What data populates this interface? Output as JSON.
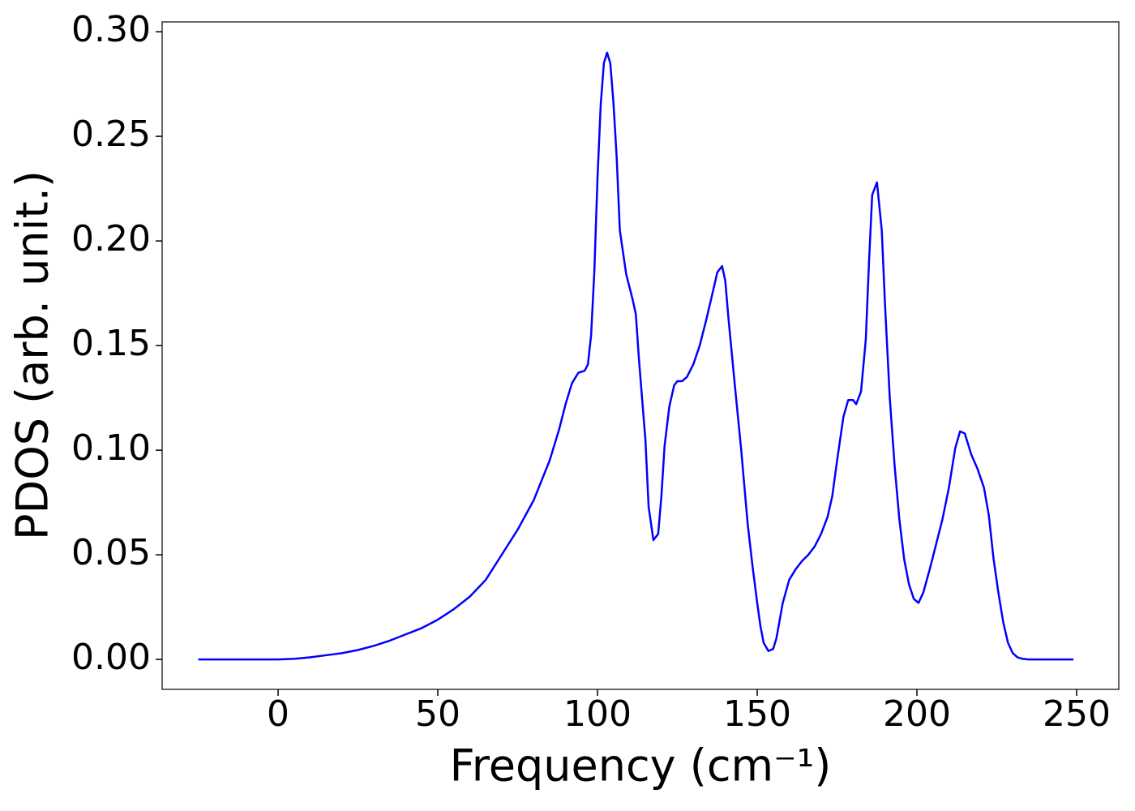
{
  "chart_data": {
    "type": "line",
    "xlabel": "Frequency (cm⁻¹)",
    "ylabel": "PDOS (arb. unit.)",
    "xlim": [
      -36.3,
      263.2
    ],
    "ylim": [
      -0.0143,
      0.3047
    ],
    "xticks": [
      0,
      50,
      100,
      150,
      200,
      250
    ],
    "yticks": [
      {
        "value": 0,
        "label": "0.00"
      },
      {
        "value": 0.05,
        "label": "0.05"
      },
      {
        "value": 0.1,
        "label": "0.10"
      },
      {
        "value": 0.15,
        "label": "0.15"
      },
      {
        "value": 0.2,
        "label": "0.20"
      },
      {
        "value": 0.25,
        "label": "0.25"
      },
      {
        "value": 0.3,
        "label": "0.30"
      }
    ],
    "grid": false,
    "series": [
      {
        "color": "#0000ff",
        "x": [
          -25,
          0,
          5,
          10,
          15,
          20,
          25,
          30,
          35,
          40,
          45,
          50,
          55,
          60,
          65,
          70,
          75,
          80,
          85,
          88,
          90,
          92,
          94,
          96,
          97,
          98,
          99,
          100,
          101,
          102,
          103,
          104,
          105,
          106,
          107,
          109,
          111,
          112,
          113,
          115,
          116,
          117.5,
          119,
          120,
          121,
          122.5,
          124,
          125,
          126.5,
          128,
          130,
          132,
          134,
          136,
          137.5,
          139,
          140,
          141,
          143,
          145,
          147,
          148.5,
          150,
          151,
          152,
          153.5,
          155,
          156,
          158,
          160,
          162,
          164,
          166,
          168,
          170,
          172,
          173.5,
          175,
          177,
          178.5,
          180,
          181,
          182.5,
          184,
          185,
          186,
          187.5,
          189,
          190,
          191.5,
          193,
          194.5,
          196,
          197.5,
          199,
          200.5,
          202,
          204,
          206,
          208,
          210,
          212,
          213.5,
          215,
          217,
          219,
          221,
          222.5,
          224,
          225.5,
          227,
          228.5,
          230,
          231.5,
          233,
          235,
          249
        ],
        "values": [
          0,
          0,
          0.0003,
          0.001,
          0.002,
          0.003,
          0.0045,
          0.0065,
          0.009,
          0.012,
          0.015,
          0.019,
          0.024,
          0.03,
          0.038,
          0.05,
          0.062,
          0.076,
          0.095,
          0.11,
          0.122,
          0.132,
          0.137,
          0.138,
          0.141,
          0.155,
          0.185,
          0.23,
          0.265,
          0.285,
          0.29,
          0.285,
          0.266,
          0.24,
          0.205,
          0.184,
          0.172,
          0.165,
          0.143,
          0.105,
          0.073,
          0.057,
          0.06,
          0.078,
          0.102,
          0.121,
          0.131,
          0.133,
          0.133,
          0.135,
          0.141,
          0.15,
          0.162,
          0.175,
          0.185,
          0.188,
          0.181,
          0.163,
          0.131,
          0.1,
          0.065,
          0.045,
          0.027,
          0.016,
          0.008,
          0.004,
          0.005,
          0.01,
          0.027,
          0.038,
          0.043,
          0.047,
          0.05,
          0.054,
          0.06,
          0.068,
          0.078,
          0.095,
          0.116,
          0.124,
          0.124,
          0.122,
          0.128,
          0.153,
          0.19,
          0.222,
          0.228,
          0.205,
          0.17,
          0.125,
          0.093,
          0.067,
          0.048,
          0.036,
          0.029,
          0.027,
          0.032,
          0.043,
          0.055,
          0.067,
          0.082,
          0.101,
          0.109,
          0.108,
          0.098,
          0.091,
          0.082,
          0.069,
          0.048,
          0.032,
          0.018,
          0.008,
          0.003,
          0.001,
          0.0003,
          0,
          0
        ]
      }
    ]
  }
}
